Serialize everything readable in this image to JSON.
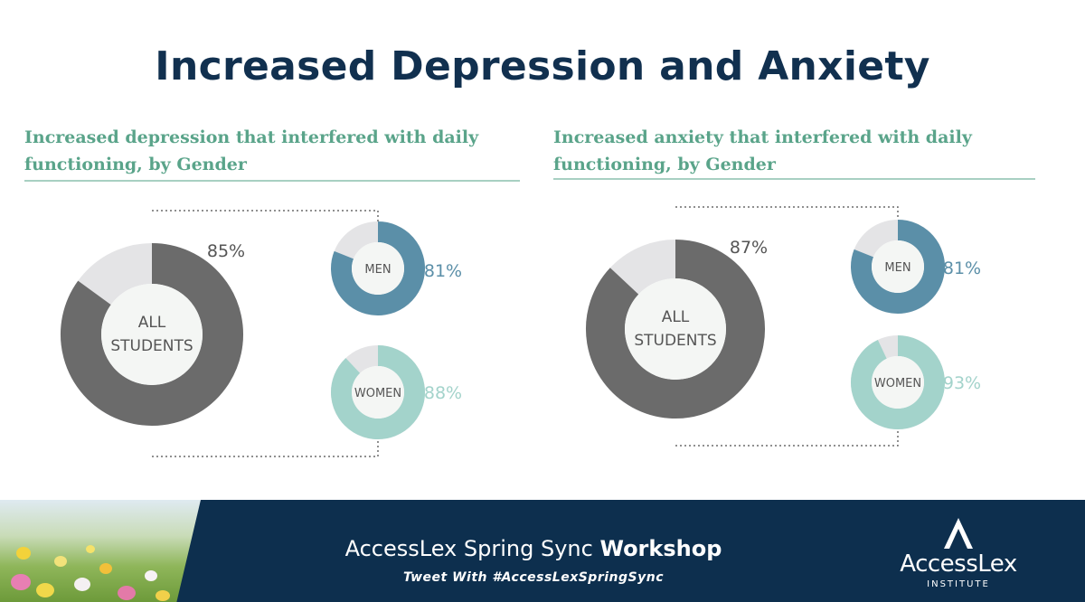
{
  "page_title": "Increased Depression and Anxiety",
  "colors": {
    "title": "#11304f",
    "subtitle": "#5aa48a",
    "all_students": "#6b6b6b",
    "men": "#5b8fa8",
    "women": "#a3d3cb",
    "remainder": "#e4e4e6",
    "footer_bg": "#0d2f4e"
  },
  "chart_data": [
    {
      "type": "donut",
      "title": "Increased depression that interfered with daily functioning, by Gender",
      "title_lines": [
        "Increased depression that interfered with daily",
        "functioning, by Gender"
      ],
      "series": [
        {
          "name": "ALL STUDENTS",
          "label_lines": [
            "ALL",
            "STUDENTS"
          ],
          "value": 85,
          "value_label": "85%"
        },
        {
          "name": "MEN",
          "label_lines": [
            "MEN"
          ],
          "value": 81,
          "value_label": "81%"
        },
        {
          "name": "WOMEN",
          "label_lines": [
            "WOMEN"
          ],
          "value": 88,
          "value_label": "88%"
        }
      ]
    },
    {
      "type": "donut",
      "title": "Increased anxiety that interfered with daily functioning, by Gender",
      "title_lines": [
        "Increased anxiety that interfered with daily",
        "functioning, by Gender"
      ],
      "series": [
        {
          "name": "ALL STUDENTS",
          "label_lines": [
            "ALL",
            "STUDENTS"
          ],
          "value": 87,
          "value_label": "87%"
        },
        {
          "name": "MEN",
          "label_lines": [
            "MEN"
          ],
          "value": 81,
          "value_label": "81%"
        },
        {
          "name": "WOMEN",
          "label_lines": [
            "WOMEN"
          ],
          "value": 93,
          "value_label": "93%"
        }
      ]
    }
  ],
  "footer": {
    "event_prefix": "AccessLex Spring Sync",
    "event_bold": "Workshop",
    "tweet": "Tweet With #AccessLexSpringSync",
    "logo_name": "AccessLex",
    "logo_sub": "INSTITUTE"
  }
}
